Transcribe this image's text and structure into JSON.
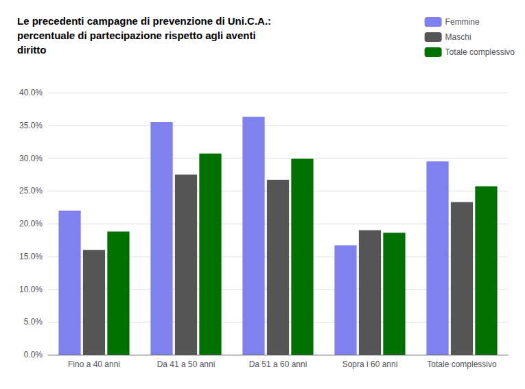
{
  "chart_data": {
    "type": "bar",
    "title": "Le precedenti campagne di prevenzione di Uni.C.A.:\npercentuale di partecipazione rispetto agli aventi\ndiritto",
    "categories": [
      "Fino a 40 anni",
      "Da 41 a 50 anni",
      "Da 51 a 60 anni",
      "Sopra i 60 anni",
      "Totale complessivo"
    ],
    "series": [
      {
        "name": "Femmine",
        "color": "#8080ee",
        "values": [
          22.0,
          35.5,
          36.3,
          16.7,
          29.5
        ]
      },
      {
        "name": "Maschi",
        "color": "#555555",
        "values": [
          16.0,
          27.5,
          26.7,
          19.0,
          23.3
        ]
      },
      {
        "name": "Totale complessivo",
        "color": "#007000",
        "values": [
          18.8,
          30.7,
          29.9,
          18.6,
          25.7
        ]
      }
    ],
    "ylim": [
      0,
      40
    ],
    "yticks": [
      {
        "value": 0,
        "label": "0.0%"
      },
      {
        "value": 5,
        "label": "5.0%"
      },
      {
        "value": 10,
        "label": "10.0%"
      },
      {
        "value": 15,
        "label": "15.0%"
      },
      {
        "value": 20,
        "label": "20.0%"
      },
      {
        "value": 25,
        "label": "25.0%"
      },
      {
        "value": 30,
        "label": "30.0%"
      },
      {
        "value": 35,
        "label": "35.0%"
      },
      {
        "value": 40,
        "label": "40.0%"
      }
    ],
    "grid": true,
    "legend": "upper right"
  }
}
